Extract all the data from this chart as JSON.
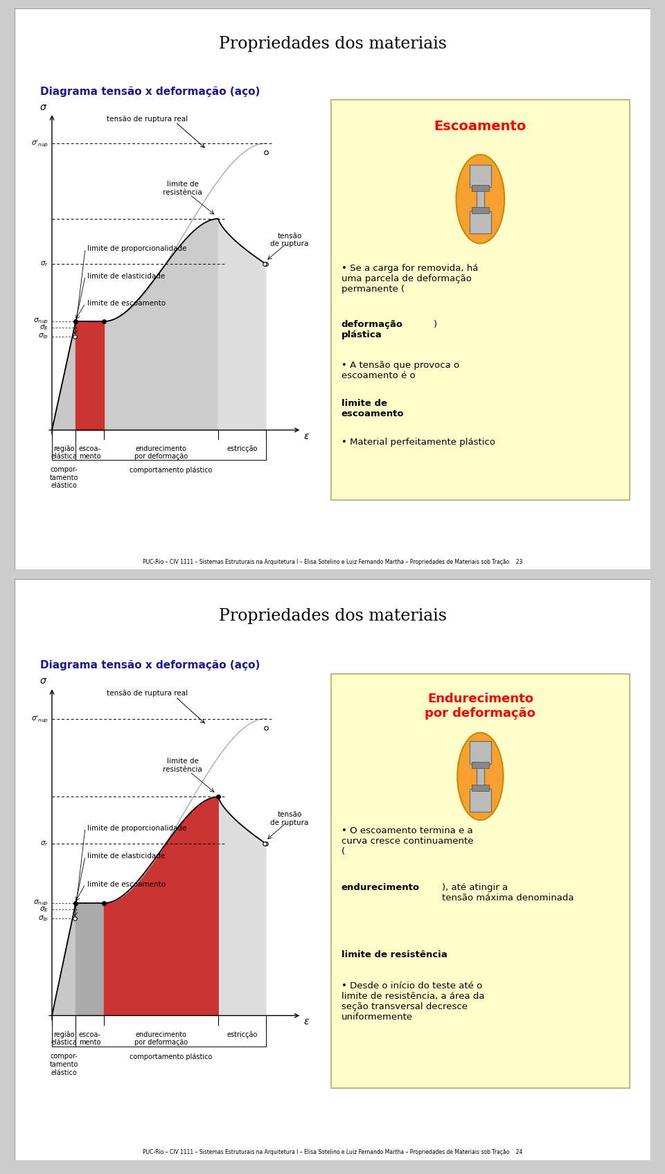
{
  "slide1": {
    "title": "Propriedades dos materiais",
    "subtitle": "Diagrama tensão x deformação (aço)",
    "box_title": "Escoamento",
    "bullet1a": "• Se a carga for removida, há\numa parcela de deformação\npermanente (",
    "bullet1b": "deformação\nplástica",
    "bullet1c": ")",
    "bullet2a": "• A tensão que provoca o\nescoamento é o ",
    "bullet2b": "limite de\nescoamento",
    "bullet3": "• Material perfeitamente plástico",
    "footer": "PUC-Rio – CIV 1111 – Sistemas Estruturais na Arquitetura I – Elisa Sotelino e Luiz Fernando Martha – Propriedades de Materiais sob Tração    23"
  },
  "slide2": {
    "title": "Propriedades dos materiais",
    "subtitle": "Diagrama tensão x deformação (aço)",
    "box_title": "Endurecimento\npor deformação",
    "bullet1a": "• O escoamento termina e a\ncurva cresce continuamente\n(",
    "bullet1b": "endurecimento",
    "bullet1c": "), até atingir a\ntensão máxima denominada\n",
    "bullet2b": "limite de resistência",
    "bullet3": "• Desde o início do teste até o\nlimite de resistência, a área da\nseção transversal decresce\nuniformemente",
    "footer": "PUC-Rio – CIV 1111 – Sistemas Estruturais na Arquitetura I – Elisa Sotelino e Luiz Fernando Martha – Propriedades de Materiais sob Tração    24"
  },
  "outer_bg": "#cccccc",
  "slide_bg": "#ffffff",
  "box_bg": "#ffffcc",
  "box_border": "#bbbb88",
  "red_fill": "#cc3333",
  "dark_gray_fill": "#aaaaaa",
  "light_gray_fill": "#cccccc",
  "lighter_gray_fill": "#dddddd",
  "elastic_gray": "#c8c8c8"
}
